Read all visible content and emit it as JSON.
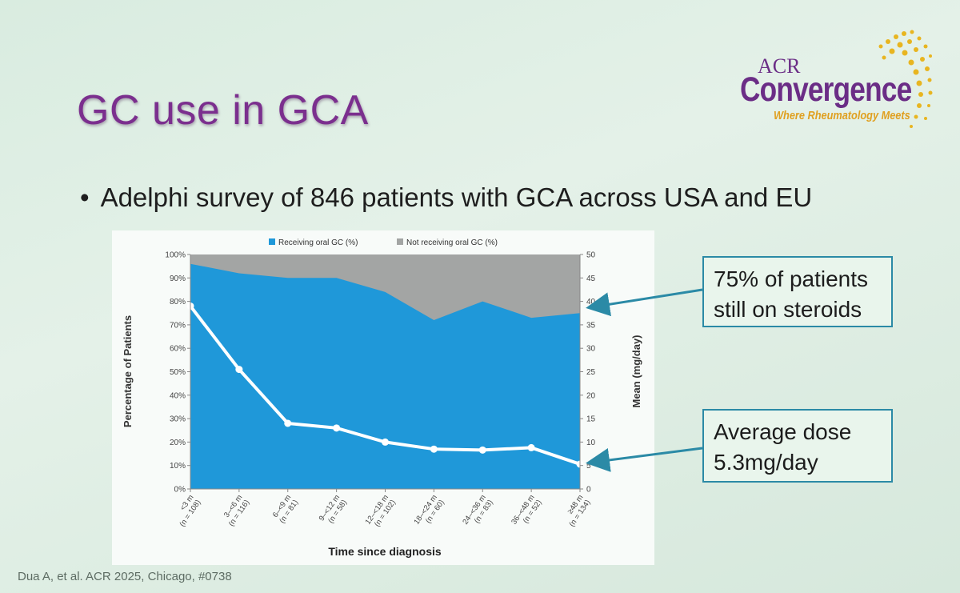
{
  "slide": {
    "title": "GC use in GCA",
    "bullet": "Adelphi survey of 846 patients with GCA across USA and EU",
    "citation": "Dua A, et al. ACR 2025, Chicago, #0738"
  },
  "logo": {
    "line1": "ACR",
    "line2": "Convergence",
    "tagline": "Where Rheumatology Meets"
  },
  "callouts": [
    {
      "text_line1": "75% of patients",
      "text_line2": "still on steroids"
    },
    {
      "text_line1": "Average dose",
      "text_line2": "5.3mg/day"
    }
  ],
  "colors": {
    "receiving": "#1f98d9",
    "not_receiving": "#a3a5a4",
    "mean_line": "#ffffff",
    "title": "#7b2f8e",
    "arrow": "#2b8aa6"
  },
  "chart_data": {
    "type": "area",
    "xlabel": "Time since diagnosis",
    "ylabel": "Percentage of Patients",
    "y2label": "Mean (mg/day)",
    "ylim": [
      0,
      100
    ],
    "y2lim": [
      0,
      50
    ],
    "yticks": [
      "0%",
      "10%",
      "20%",
      "30%",
      "40%",
      "50%",
      "60%",
      "70%",
      "80%",
      "90%",
      "100%"
    ],
    "y2ticks": [
      "0",
      "5",
      "10",
      "15",
      "20",
      "25",
      "30",
      "35",
      "40",
      "45",
      "50"
    ],
    "categories": [
      {
        "label": "<3 m",
        "n": "(n = 108)"
      },
      {
        "label": "3–<6 m",
        "n": "(n = 116)"
      },
      {
        "label": "6–<9 m",
        "n": "(n = 81)"
      },
      {
        "label": "9–<12 m",
        "n": "(n = 58)"
      },
      {
        "label": "12–<18 m",
        "n": "(n = 102)"
      },
      {
        "label": "18–<24 m",
        "n": "(n = 60)"
      },
      {
        "label": "24–<36 m",
        "n": "(n = 83)"
      },
      {
        "label": "36–<48 m",
        "n": "(n = 52)"
      },
      {
        "label": "≥48 m",
        "n": "(n = 134)"
      }
    ],
    "legend": [
      "Receiving oral GC (%)",
      "Not receiving oral GC (%)"
    ],
    "series": [
      {
        "name": "Receiving oral GC (%)",
        "values": [
          96,
          92,
          90,
          90,
          84,
          72,
          80,
          73,
          75
        ]
      },
      {
        "name": "Not receiving oral GC (%)",
        "values": [
          4,
          8,
          10,
          10,
          16,
          28,
          20,
          27,
          25
        ]
      },
      {
        "name": "Mean dose (mg/day)",
        "axis": "y2",
        "values": [
          39,
          25.5,
          14,
          13,
          10,
          8.5,
          8.3,
          8.8,
          5.3
        ]
      }
    ]
  }
}
